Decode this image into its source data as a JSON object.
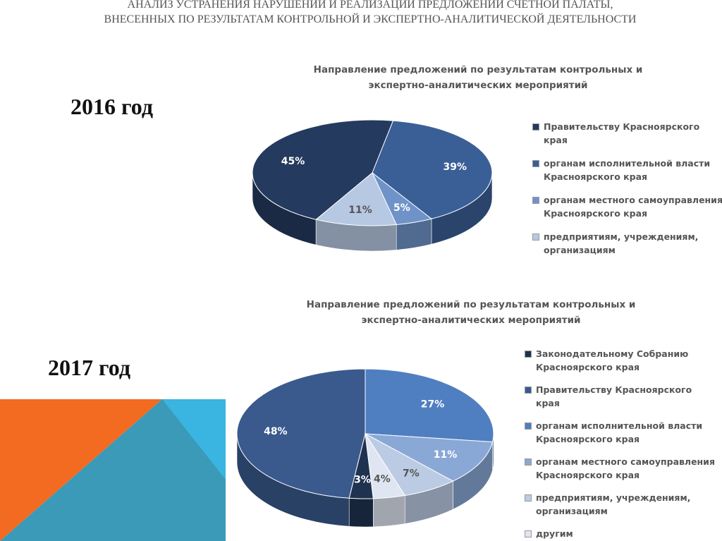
{
  "slide": {
    "title": "АНАЛИЗ УСТРАНЕНИЯ НАРУШЕНИЙ И РЕАЛИЗАЦИИ ПРЕДЛОЖЕНИЙ СЧЕТНОЙ ПАЛАТЫ, ВНЕСЕННЫХ ПО РЕЗУЛЬТАТАМ КОНТРОЛЬНОЙ И ЭКСПЕРТНО-АНАЛИТИЧЕСКОЙ ДЕЯТЕЛЬНОСТИ"
  },
  "chart_data": [
    {
      "type": "pie",
      "year": "2016 год",
      "title": "Направление предложений по результатам контрольных и экспертно-аналитических мероприятий",
      "categories": [
        "Правительству Красноярского края",
        "органам исполнительной власти Красноярского края",
        "органам местного самоуправления Красноярского края",
        "предприятиям, учреждениям, организациям"
      ],
      "values": [
        45,
        39,
        5,
        11
      ],
      "value_labels": [
        "45%",
        "39%",
        "5%",
        "11%"
      ],
      "colors": [
        "#243a5e",
        "#3a5f96",
        "#6f93c8",
        "#b7c8e3"
      ],
      "legend": "right"
    },
    {
      "type": "pie",
      "year": "2017 год",
      "title": "Направление предложений по результатам контрольных и экспертно-аналитических мероприятий",
      "categories": [
        "Законодательному Собранию Красноярского края",
        "Правительству Красноярского края",
        "органам исполнительной власти Красноярского края",
        "органам местного самоуправления Красноярского края",
        "предприятиям, учреждениям, организациям",
        "другим"
      ],
      "values": [
        3,
        48,
        27,
        11,
        7,
        4
      ],
      "value_labels": [
        "3%",
        "48%",
        "27%",
        "11%",
        "7%",
        "4%"
      ],
      "colors": [
        "#1f3350",
        "#3a5a8e",
        "#4f7fc0",
        "#8aa8d6",
        "#bccbe4",
        "#dfe6f2"
      ],
      "legend": "right"
    }
  ]
}
